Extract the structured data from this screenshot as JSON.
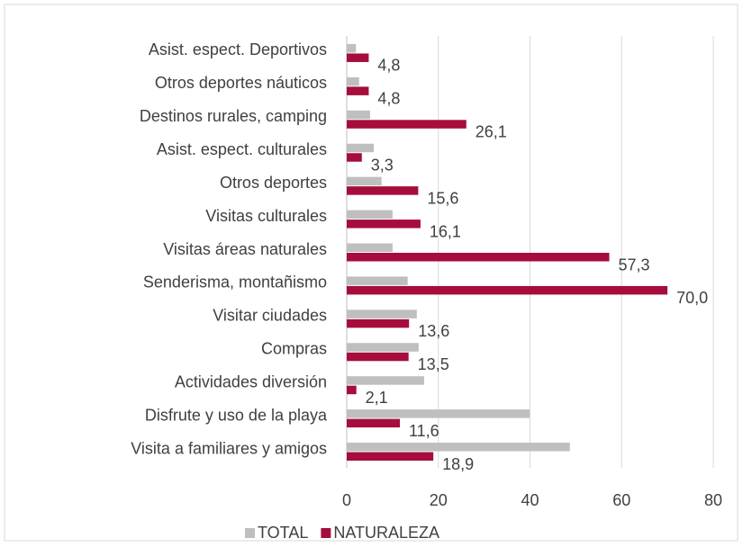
{
  "chart_data": {
    "type": "bar",
    "orientation": "horizontal",
    "categories": [
      "Asist. espect. Deportivos",
      "Otros deportes náuticos",
      "Destinos rurales,  camping",
      "Asist. espect. culturales",
      "Otros deportes",
      "Visitas culturales",
      "Visitas áreas naturales",
      "Senderisma, montañismo",
      "Visitar ciudades",
      "Compras",
      "Actividades diversión",
      "Disfrute y uso de la playa",
      "Visita a familiares y amigos"
    ],
    "series": [
      {
        "name": "TOTAL",
        "color": "#bfbfbf",
        "values": [
          2.0,
          2.7,
          5.1,
          5.9,
          7.6,
          10.0,
          10.0,
          13.3,
          15.3,
          15.7,
          16.9,
          39.9,
          48.7
        ]
      },
      {
        "name": "NATURALEZA",
        "color": "#a50d3c",
        "values": [
          4.8,
          4.8,
          26.1,
          3.3,
          15.6,
          16.1,
          57.3,
          70.0,
          13.6,
          13.5,
          2.1,
          11.6,
          18.9
        ],
        "value_labels": [
          "4,8",
          "4,8",
          "26,1",
          "3,3",
          "15,6",
          "16,1",
          "57,3",
          "70,0",
          "13,6",
          "13,5",
          "2,1",
          "11,6",
          "18,9"
        ]
      }
    ],
    "xlim": [
      0,
      80
    ],
    "xticks": [
      0,
      20,
      40,
      60,
      80
    ],
    "grid": true,
    "legend": "bottom"
  }
}
